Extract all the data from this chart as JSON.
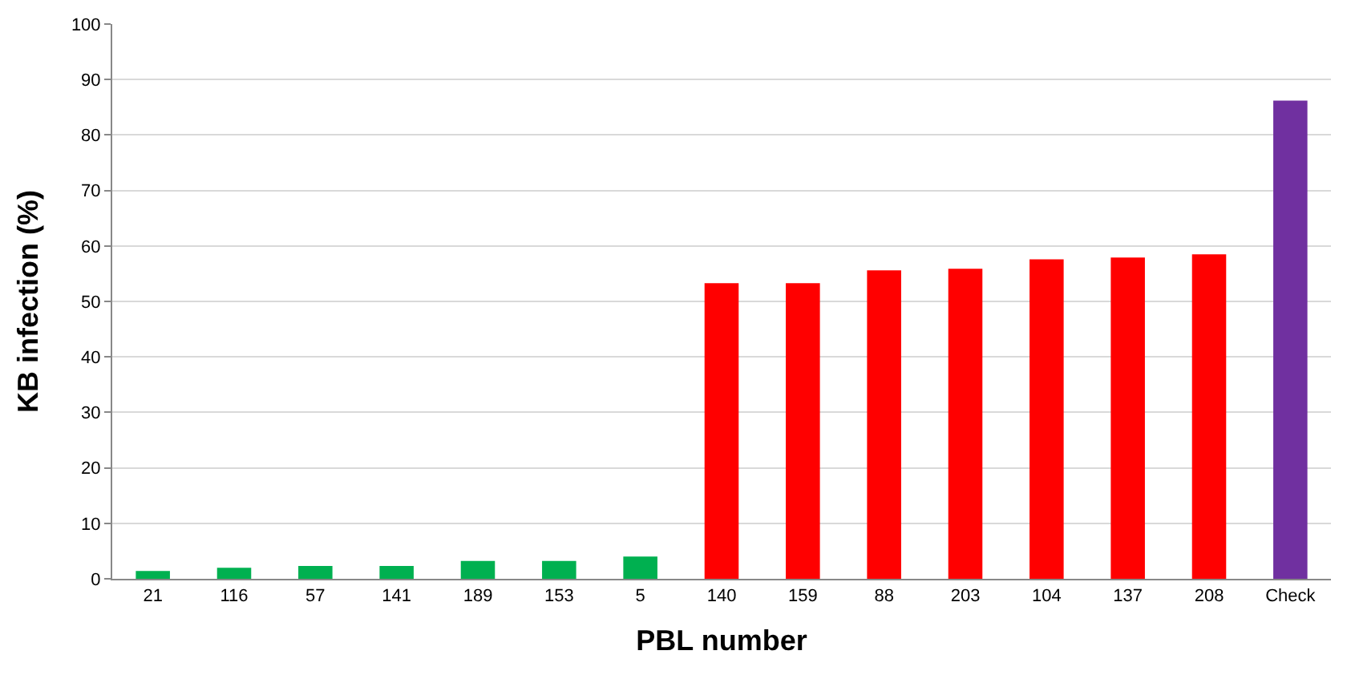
{
  "chart_data": {
    "type": "bar",
    "xlabel": "PBL number",
    "ylabel": "KB infection (%)",
    "categories": [
      "21",
      "116",
      "57",
      "141",
      "189",
      "153",
      "5",
      "140",
      "159",
      "88",
      "203",
      "104",
      "137",
      "208",
      "Check"
    ],
    "values": [
      1.4,
      2.0,
      2.3,
      2.3,
      3.2,
      3.2,
      4.0,
      53.3,
      53.3,
      55.6,
      55.9,
      57.6,
      57.9,
      58.5,
      86.2
    ],
    "colors": [
      "#00b050",
      "#00b050",
      "#00b050",
      "#00b050",
      "#00b050",
      "#00b050",
      "#00b050",
      "#ff0000",
      "#ff0000",
      "#ff0000",
      "#ff0000",
      "#ff0000",
      "#ff0000",
      "#ff0000",
      "#7030a0"
    ],
    "ylim": [
      0,
      100
    ],
    "yticks": [
      0,
      10,
      20,
      30,
      40,
      50,
      60,
      70,
      80,
      90,
      100
    ],
    "grid": "y"
  }
}
